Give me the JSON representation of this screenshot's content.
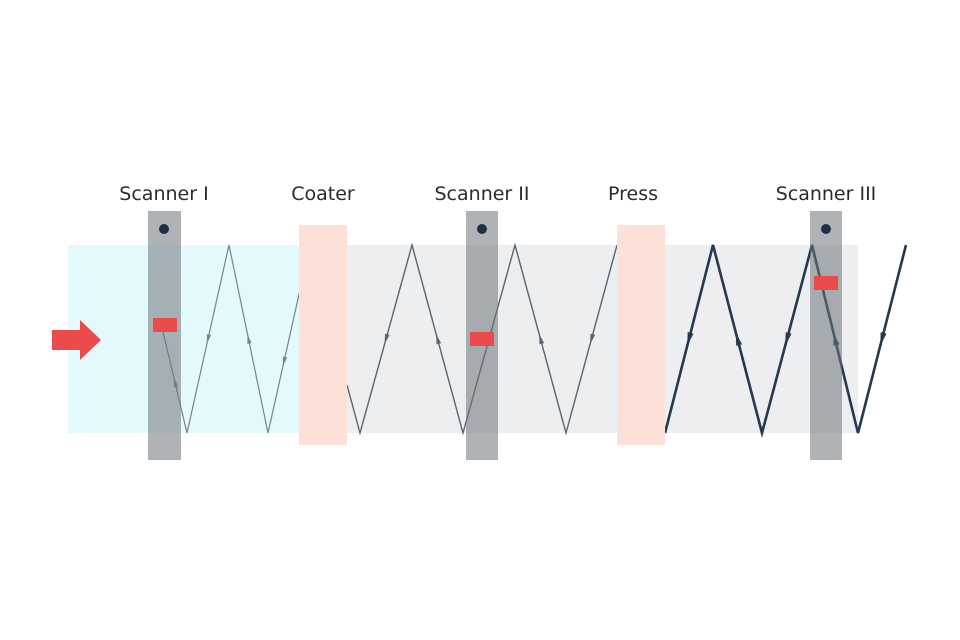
{
  "stations": [
    {
      "label": "Scanner I"
    },
    {
      "label": "Coater"
    },
    {
      "label": "Scanner II"
    },
    {
      "label": "Press"
    },
    {
      "label": "Scanner III"
    }
  ]
}
